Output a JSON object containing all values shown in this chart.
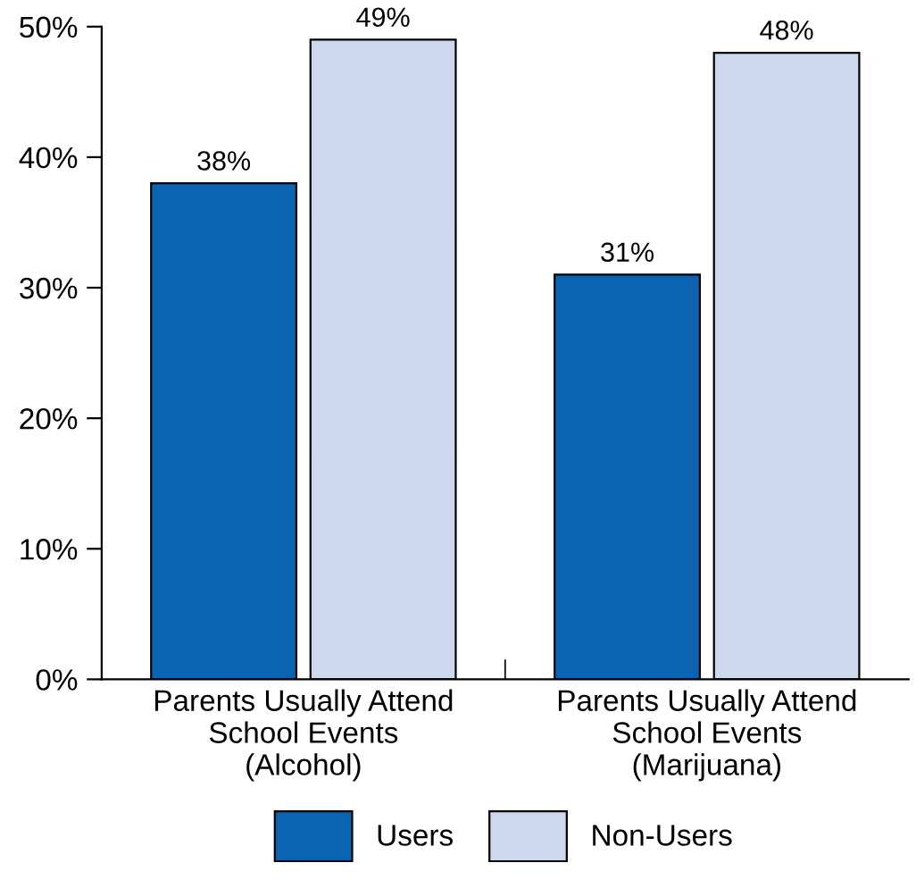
{
  "chart_data": {
    "type": "bar",
    "categories": [
      "Parents Usually Attend\nSchool Events\n(Alcohol)",
      "Parents Usually Attend\nSchool Events\n(Marijuana)"
    ],
    "series": [
      {
        "name": "Users",
        "color": "#0b64b1",
        "values": [
          38,
          31
        ],
        "value_labels": [
          "38%",
          "31%"
        ]
      },
      {
        "name": "Non-Users",
        "color": "#cdd8ef",
        "values": [
          49,
          48
        ],
        "value_labels": [
          "49%",
          "48%"
        ]
      }
    ],
    "ylim": [
      0,
      50
    ],
    "yticks": [
      {
        "value": 0,
        "label": "0%"
      },
      {
        "value": 10,
        "label": "10%"
      },
      {
        "value": 20,
        "label": "20%"
      },
      {
        "value": 30,
        "label": "30%"
      },
      {
        "value": 40,
        "label": "40%"
      },
      {
        "value": 50,
        "label": "50%"
      }
    ],
    "legend": "bottom",
    "grid": false
  }
}
